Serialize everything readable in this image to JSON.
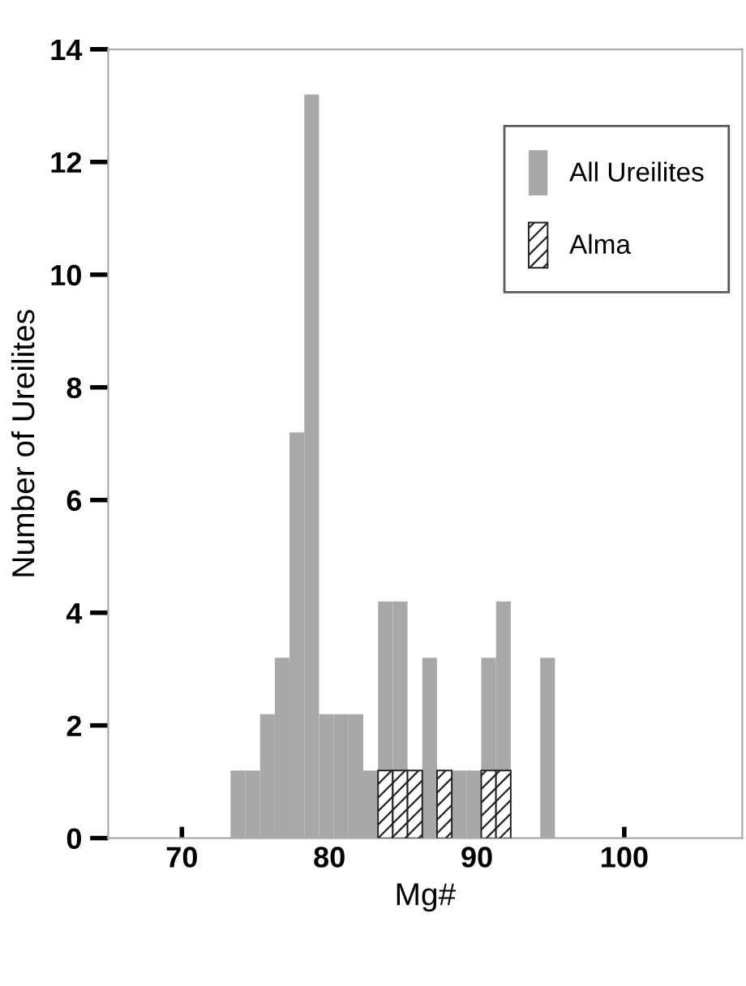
{
  "chart_data": {
    "type": "histogram",
    "xlabel": "Mg#",
    "ylabel": "Number of Ureilites",
    "bins": [
      73.3,
      74.3,
      75.3,
      76.3,
      77.3,
      78.3,
      79.3,
      80.3,
      81.3,
      82.3,
      83.3,
      84.3,
      85.3,
      86.3,
      87.3,
      88.3,
      89.3,
      90.3,
      91.3,
      92.3,
      93.3,
      94.3,
      95.3
    ],
    "series": [
      {
        "name": "All Ureilites",
        "color": "#a8a8a8",
        "values": [
          1.2,
          1.2,
          2.2,
          3.2,
          7.2,
          13.2,
          2.2,
          2.2,
          2.2,
          1.2,
          4.2,
          4.2,
          null,
          3.2,
          null,
          1.2,
          1.2,
          3.2,
          4.2,
          0,
          0,
          3.2
        ]
      },
      {
        "name": "Alma",
        "color": "#222222",
        "values": [
          null,
          null,
          null,
          null,
          null,
          null,
          null,
          null,
          null,
          null,
          1.2,
          1.2,
          1.2,
          null,
          1.2,
          null,
          null,
          1.2,
          1.2,
          null,
          null,
          null
        ]
      }
    ],
    "xlim": [
      65,
      108
    ],
    "ylim": [
      0,
      14
    ],
    "xticks": [
      70,
      80,
      90,
      100
    ],
    "yticks": [
      0,
      2,
      4,
      6,
      8,
      10,
      12,
      14
    ],
    "grid": false,
    "legend": "top right"
  }
}
